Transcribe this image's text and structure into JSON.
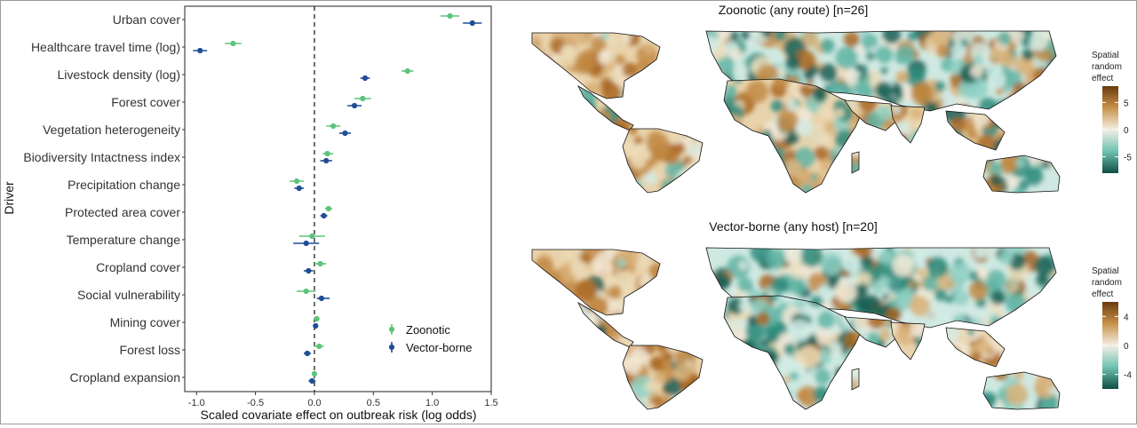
{
  "chart_data": [
    {
      "type": "scatter",
      "subtype": "forest-plot",
      "title": "",
      "xlabel": "Scaled covariate effect on outbreak risk (log odds)",
      "ylabel": "Driver",
      "xlim": [
        -1.1,
        1.5
      ],
      "xticks": [
        "-1.0",
        "-0.5",
        "0.0",
        "0.5",
        "1.0",
        "1.5"
      ],
      "reference_line_x": 0,
      "reference_line_style": "dashed",
      "legend_placement": "bottom-right",
      "categories": [
        "Urban cover",
        "Healthcare travel time (log)",
        "Livestock density (log)",
        "Forest cover",
        "Vegetation heterogeneity",
        "Biodiversity Intactness index",
        "Precipitation change",
        "Protected area cover",
        "Temperature change",
        "Cropland cover",
        "Social vulnerability",
        "Mining cover",
        "Forest loss",
        "Cropland expansion"
      ],
      "series": [
        {
          "name": "Zoonotic",
          "color": "#5cc47a",
          "values": [
            1.15,
            -0.69,
            0.79,
            0.41,
            0.16,
            0.11,
            -0.15,
            0.12,
            -0.02,
            0.05,
            -0.07,
            0.02,
            0.04,
            0.0
          ],
          "ci_low": [
            1.07,
            -0.76,
            0.74,
            0.34,
            0.1,
            0.07,
            -0.21,
            0.09,
            -0.13,
            0.0,
            -0.15,
            0.0,
            0.0,
            -0.02
          ],
          "ci_high": [
            1.23,
            -0.62,
            0.84,
            0.48,
            0.22,
            0.16,
            -0.09,
            0.15,
            0.09,
            0.1,
            0.01,
            0.04,
            0.08,
            0.02
          ]
        },
        {
          "name": "Vector-borne",
          "color": "#1f4e96",
          "values": [
            1.34,
            -0.97,
            0.43,
            0.34,
            0.26,
            0.1,
            -0.13,
            0.08,
            -0.07,
            -0.05,
            0.06,
            0.01,
            -0.06,
            -0.02
          ],
          "ci_low": [
            1.26,
            -1.03,
            0.39,
            0.28,
            0.21,
            0.05,
            -0.17,
            0.05,
            -0.18,
            -0.09,
            0.02,
            0.0,
            -0.09,
            -0.05
          ],
          "ci_high": [
            1.42,
            -0.91,
            0.47,
            0.4,
            0.31,
            0.15,
            -0.09,
            0.11,
            0.04,
            -0.01,
            0.13,
            0.02,
            -0.03,
            0.01
          ]
        }
      ]
    },
    {
      "type": "heatmap",
      "subtype": "choropleth-map",
      "title": "Zoonotic (any route) [n=26]",
      "colorbar_label": [
        "Spatial",
        "random",
        "effect"
      ],
      "colorbar_ticks": [
        "5",
        "0",
        "-5"
      ],
      "colorbar_range": [
        -8,
        8
      ],
      "colors": {
        "positive": "#7a4410",
        "mid": "#f4efe4",
        "negative": "#0e5c52"
      }
    },
    {
      "type": "heatmap",
      "subtype": "choropleth-map",
      "title": "Vector-borne (any host) [n=20]",
      "colorbar_label": [
        "Spatial",
        "random",
        "effect"
      ],
      "colorbar_ticks": [
        "4",
        "0",
        "-4"
      ],
      "colorbar_range": [
        -6,
        6
      ],
      "colors": {
        "positive": "#7a4410",
        "mid": "#f4efe4",
        "negative": "#0e5c52"
      }
    }
  ]
}
